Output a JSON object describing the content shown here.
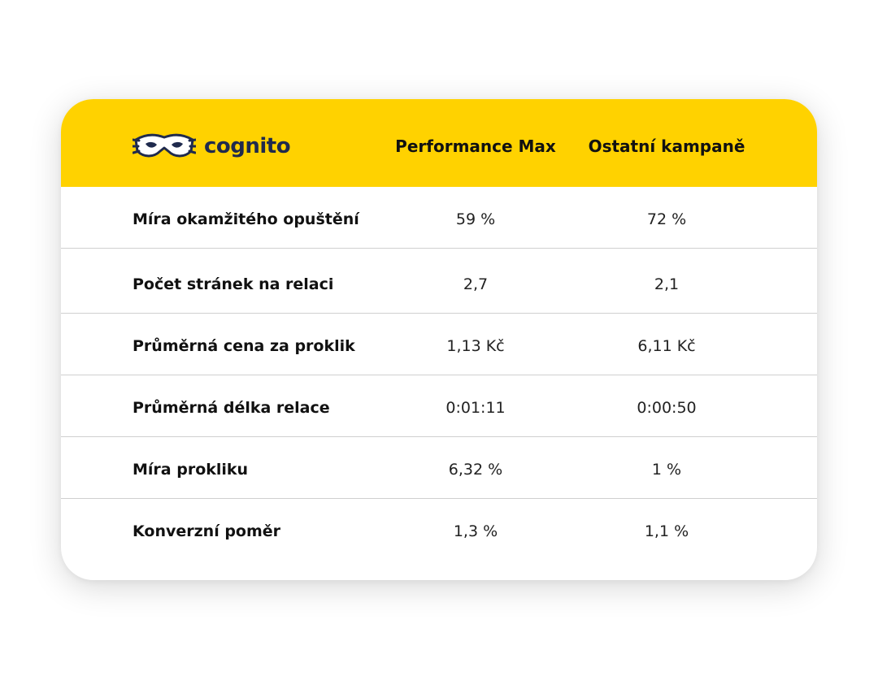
{
  "brand": {
    "name": "cognito",
    "logo_icon": "mask-icon",
    "text_color": "#1f2a4d"
  },
  "colors": {
    "header_bg": "#ffd200",
    "card_bg": "#ffffff",
    "divider": "#cfcfcf"
  },
  "columns": [
    "Performance Max",
    "Ostatní kampaně"
  ],
  "rows": [
    {
      "label": "Míra okamžitého opuštění",
      "values": [
        "59 %",
        "72 %"
      ]
    },
    {
      "label": "Počet stránek na relaci",
      "values": [
        "2,7",
        "2,1"
      ]
    },
    {
      "label": "Průměrná cena za proklik",
      "values": [
        "1,13 Kč",
        "6,11 Kč"
      ]
    },
    {
      "label": "Průměrná délka relace",
      "values": [
        "0:01:11",
        "0:00:50"
      ]
    },
    {
      "label": "Míra prokliku",
      "values": [
        "6,32 %",
        "1 %"
      ]
    },
    {
      "label": "Konverzní poměr",
      "values": [
        "1,3 %",
        "1,1 %"
      ]
    }
  ]
}
